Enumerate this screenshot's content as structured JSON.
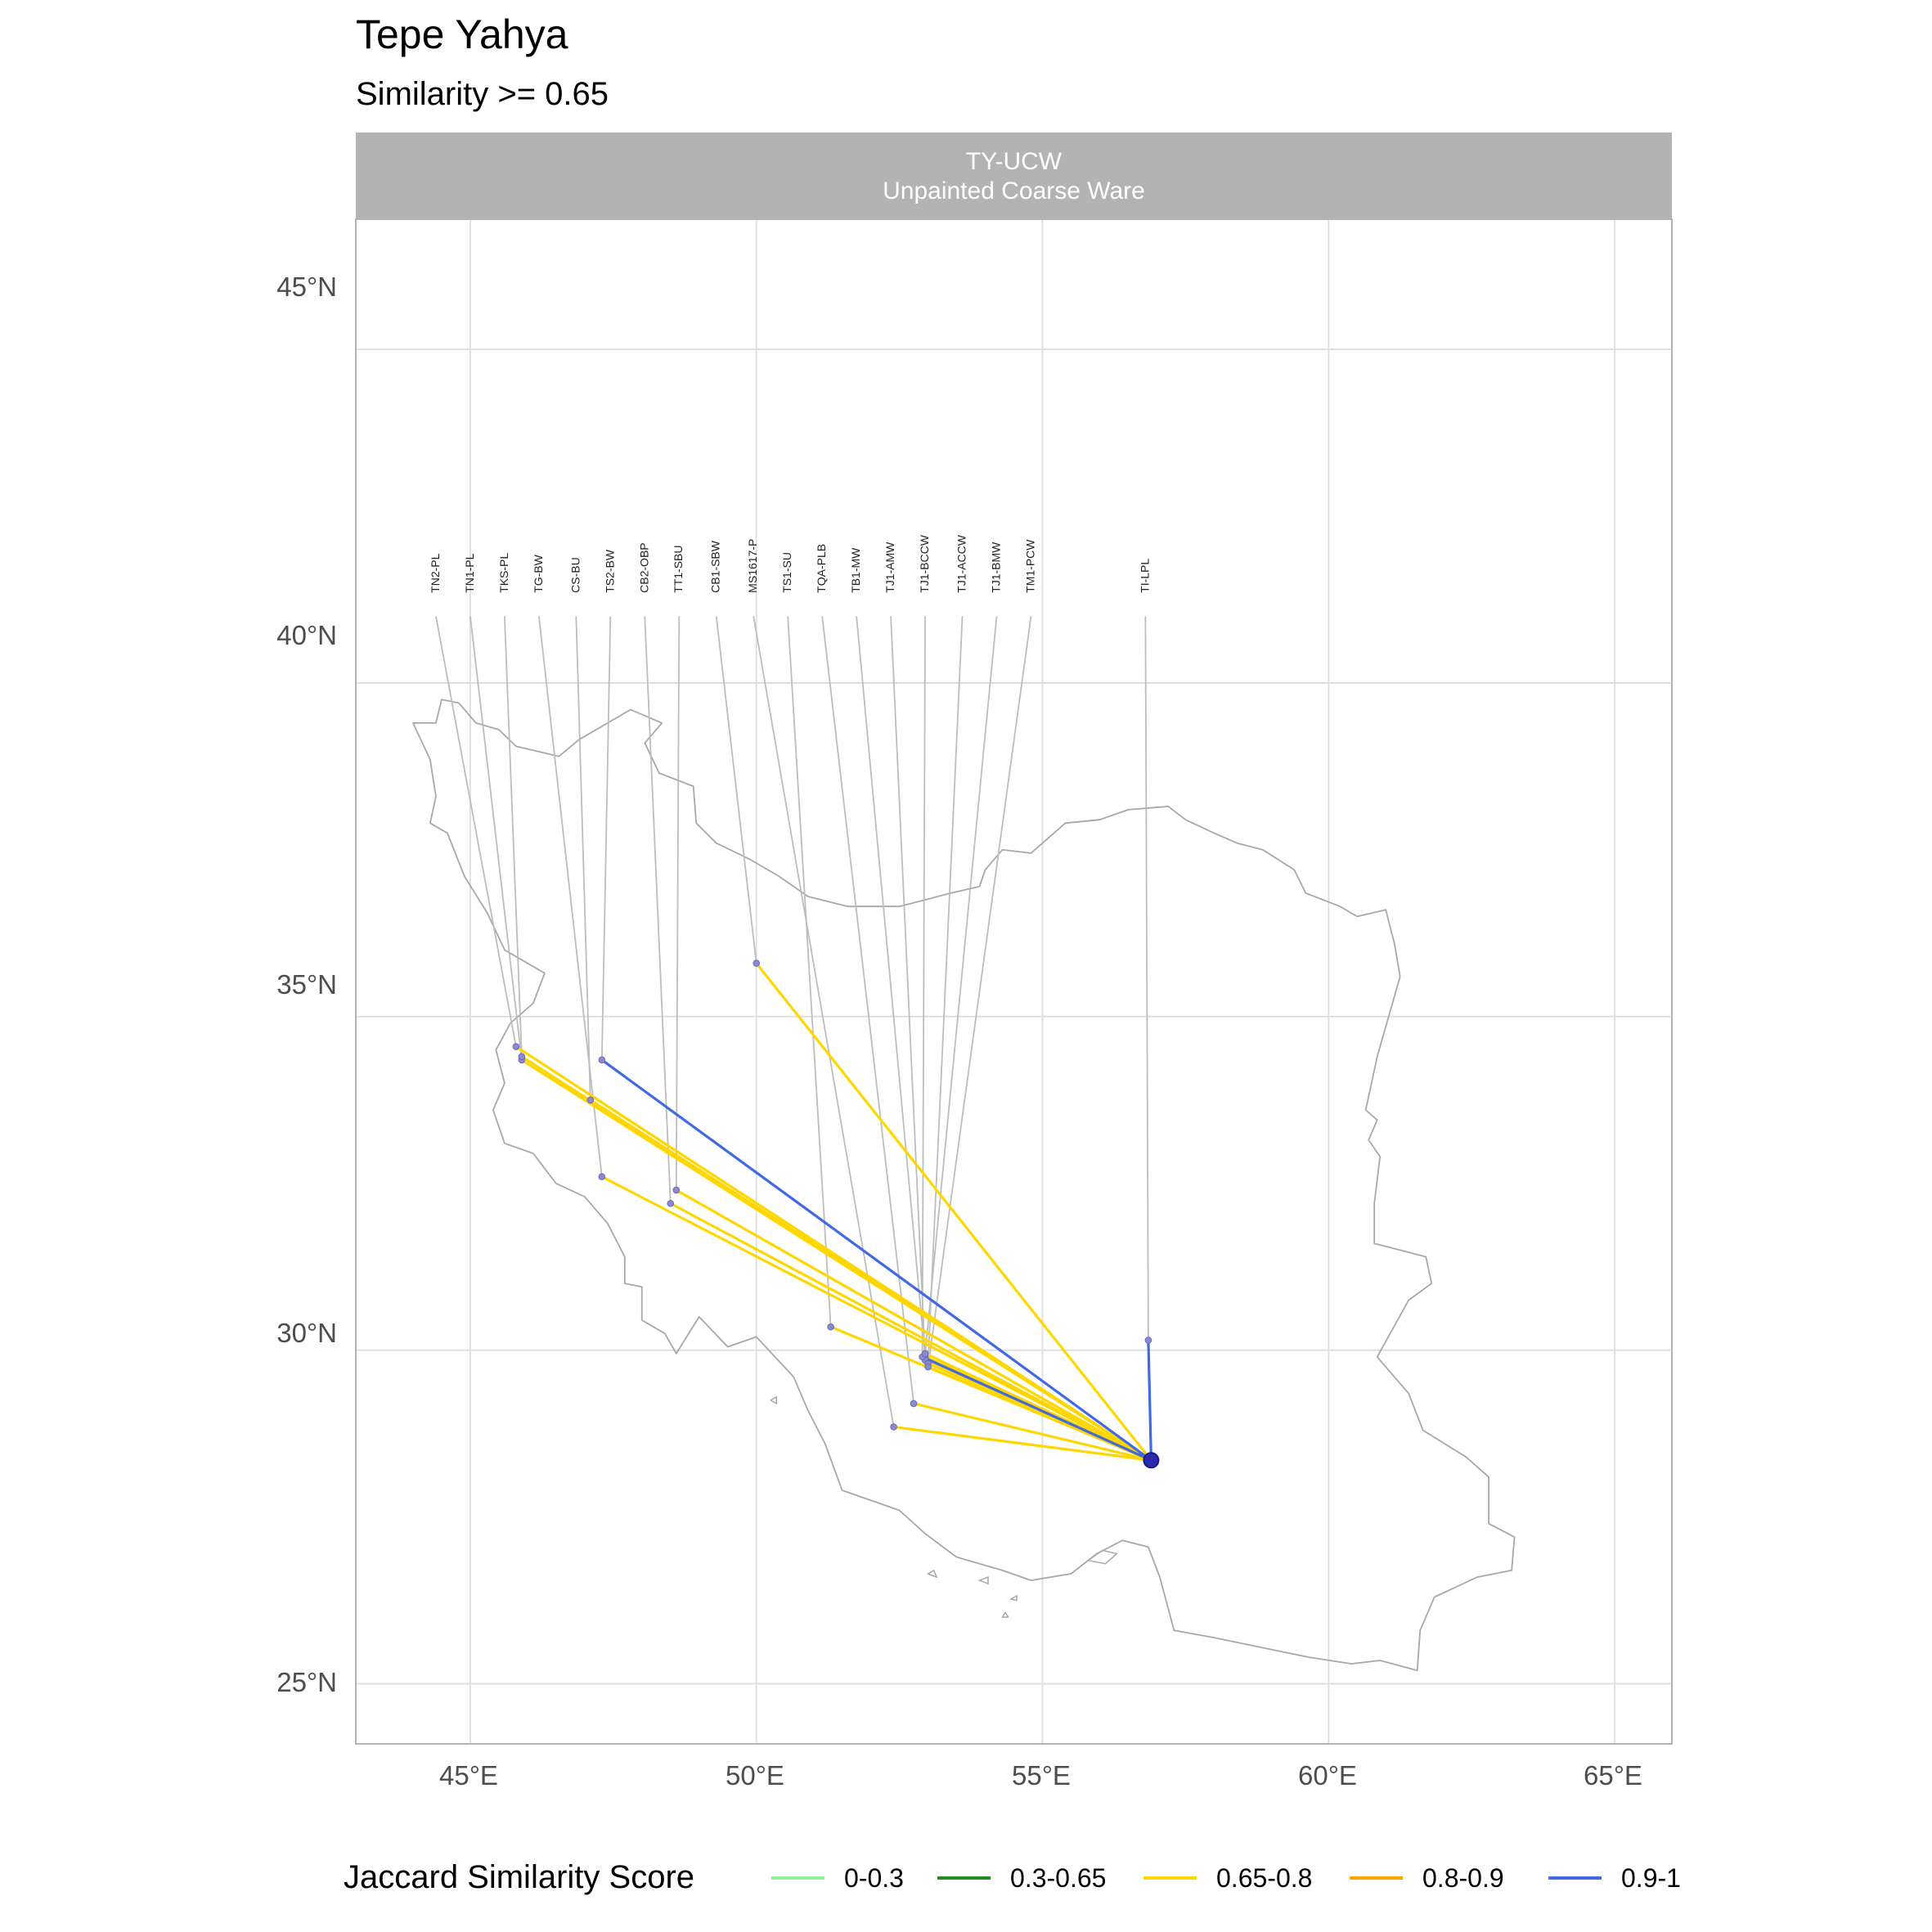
{
  "title": "Tepe Yahya",
  "subtitle": "Similarity >= 0.65",
  "panel": {
    "line1": "TY-UCW",
    "line2": "Unpainted Coarse Ware"
  },
  "axes": {
    "x_ticks": [
      "45°E",
      "50°E",
      "55°E",
      "60°E",
      "65°E"
    ],
    "y_ticks": [
      "45°N",
      "40°N",
      "35°N",
      "30°N",
      "25°N"
    ]
  },
  "legend": {
    "title": "Jaccard Similarity Score",
    "items": [
      {
        "label": "0-0.3",
        "color": "#90EE90"
      },
      {
        "label": "0.3-0.65",
        "color": "#228B22"
      },
      {
        "label": "0.65-0.8",
        "color": "#FFD700"
      },
      {
        "label": "0.8-0.9",
        "color": "#FFA500"
      },
      {
        "label": "0.9-1",
        "color": "#4169E1"
      }
    ]
  },
  "chart_data": {
    "type": "map",
    "xlim": [
      43,
      66
    ],
    "ylim": [
      24.1,
      46.95
    ],
    "x_ticks": [
      45,
      50,
      55,
      60,
      65
    ],
    "y_ticks": [
      45,
      40,
      35,
      30,
      25
    ],
    "grid": true,
    "legend_position": "bottom",
    "origin": {
      "name": "Tepe Yahya",
      "lon": 56.9,
      "lat": 28.35
    },
    "sites": [
      {
        "label": "TN2-PL",
        "lon": 45.8,
        "lat": 34.55,
        "label_lon": 44.4,
        "score": "0.65-0.8"
      },
      {
        "label": "TN1-PL",
        "lon": 45.9,
        "lat": 34.35,
        "label_lon": 45.0,
        "score": "0.65-0.8"
      },
      {
        "label": "TKS-PL",
        "lon": 45.9,
        "lat": 34.4,
        "label_lon": 45.6,
        "score": "0.65-0.8"
      },
      {
        "label": "TG-BW",
        "lon": 47.3,
        "lat": 32.6,
        "label_lon": 46.2,
        "score": "0.65-0.8"
      },
      {
        "label": "CS-BU",
        "lon": 47.1,
        "lat": 33.75,
        "label_lon": 46.85,
        "score": "0.65-0.8"
      },
      {
        "label": "TS2-BW",
        "lon": 47.3,
        "lat": 34.35,
        "label_lon": 47.45,
        "score": "0.9-1"
      },
      {
        "label": "CB2-OBP",
        "lon": 48.5,
        "lat": 32.2,
        "label_lon": 48.05,
        "score": "0.65-0.8"
      },
      {
        "label": "TT1-SBU",
        "lon": 48.6,
        "lat": 32.4,
        "label_lon": 48.65,
        "score": "0.65-0.8"
      },
      {
        "label": "CB1-SBW",
        "lon": 50.0,
        "lat": 35.8,
        "label_lon": 49.3,
        "score": "0.65-0.8"
      },
      {
        "label": "MS1617-P",
        "lon": 52.4,
        "lat": 28.85,
        "label_lon": 49.95,
        "score": "0.65-0.8"
      },
      {
        "label": "TS1-SU",
        "lon": 51.3,
        "lat": 30.35,
        "label_lon": 50.55,
        "score": "0.65-0.8"
      },
      {
        "label": "TQA-PLB",
        "lon": 52.75,
        "lat": 29.2,
        "label_lon": 51.15,
        "score": "0.65-0.8"
      },
      {
        "label": "TB1-MW",
        "lon": 52.95,
        "lat": 29.9,
        "label_lon": 51.75,
        "score": "0.65-0.8"
      },
      {
        "label": "TJ1-AMW",
        "lon": 52.95,
        "lat": 29.85,
        "label_lon": 52.35,
        "score": "0.65-0.8"
      },
      {
        "label": "TJ1-BCCW",
        "lon": 52.9,
        "lat": 29.9,
        "label_lon": 52.95,
        "score": "0.9-1"
      },
      {
        "label": "TJ1-ACCW",
        "lon": 53.0,
        "lat": 29.8,
        "label_lon": 53.6,
        "score": "0.65-0.8"
      },
      {
        "label": "TJ1-BMW",
        "lon": 52.95,
        "lat": 29.95,
        "label_lon": 54.2,
        "score": "0.65-0.8"
      },
      {
        "label": "TM1-PCW",
        "lon": 53.0,
        "lat": 29.75,
        "label_lon": 54.8,
        "score": "0.65-0.8"
      },
      {
        "label": "TI-LPL",
        "lon": 56.85,
        "lat": 30.15,
        "label_lon": 56.8,
        "score": "0.9-1"
      }
    ],
    "iran_outline": [
      [
        44.0,
        39.4
      ],
      [
        44.4,
        39.4
      ],
      [
        44.5,
        39.75
      ],
      [
        44.8,
        39.7
      ],
      [
        45.1,
        39.4
      ],
      [
        45.5,
        39.3
      ],
      [
        45.8,
        39.05
      ],
      [
        46.3,
        38.95
      ],
      [
        46.55,
        38.9
      ],
      [
        46.9,
        39.15
      ],
      [
        47.3,
        39.35
      ],
      [
        47.8,
        39.6
      ],
      [
        48.35,
        39.4
      ],
      [
        48.05,
        39.1
      ],
      [
        48.3,
        38.65
      ],
      [
        48.9,
        38.45
      ],
      [
        48.95,
        37.9
      ],
      [
        49.3,
        37.6
      ],
      [
        49.9,
        37.35
      ],
      [
        50.4,
        37.1
      ],
      [
        50.9,
        36.8
      ],
      [
        51.6,
        36.65
      ],
      [
        52.5,
        36.65
      ],
      [
        53.4,
        36.85
      ],
      [
        53.9,
        36.95
      ],
      [
        54.0,
        37.2
      ],
      [
        54.3,
        37.5
      ],
      [
        54.8,
        37.45
      ],
      [
        55.4,
        37.9
      ],
      [
        56.0,
        37.95
      ],
      [
        56.5,
        38.1
      ],
      [
        57.2,
        38.15
      ],
      [
        57.5,
        37.95
      ],
      [
        58.0,
        37.75
      ],
      [
        58.4,
        37.6
      ],
      [
        58.85,
        37.5
      ],
      [
        59.4,
        37.2
      ],
      [
        59.6,
        36.85
      ],
      [
        60.2,
        36.65
      ],
      [
        60.5,
        36.5
      ],
      [
        61.0,
        36.6
      ],
      [
        61.15,
        36.1
      ],
      [
        61.25,
        35.6
      ],
      [
        61.1,
        35.15
      ],
      [
        60.85,
        34.4
      ],
      [
        60.65,
        33.6
      ],
      [
        60.85,
        33.45
      ],
      [
        60.7,
        33.15
      ],
      [
        60.9,
        32.9
      ],
      [
        60.8,
        32.2
      ],
      [
        60.8,
        31.6
      ],
      [
        61.7,
        31.4
      ],
      [
        61.8,
        31.0
      ],
      [
        61.4,
        30.75
      ],
      [
        60.85,
        29.9
      ],
      [
        61.4,
        29.35
      ],
      [
        61.65,
        28.8
      ],
      [
        62.4,
        28.4
      ],
      [
        62.8,
        28.1
      ],
      [
        62.8,
        27.4
      ],
      [
        63.25,
        27.2
      ],
      [
        63.2,
        26.7
      ],
      [
        62.6,
        26.6
      ],
      [
        61.85,
        26.3
      ],
      [
        61.6,
        25.8
      ],
      [
        61.55,
        25.2
      ],
      [
        60.9,
        25.35
      ],
      [
        60.4,
        25.3
      ],
      [
        59.65,
        25.4
      ],
      [
        58.8,
        25.55
      ],
      [
        57.95,
        25.7
      ],
      [
        57.3,
        25.8
      ],
      [
        57.05,
        26.6
      ],
      [
        56.85,
        27.05
      ],
      [
        56.4,
        27.15
      ],
      [
        55.95,
        26.95
      ],
      [
        55.5,
        26.65
      ],
      [
        54.8,
        26.55
      ],
      [
        54.3,
        26.7
      ],
      [
        53.9,
        26.8
      ],
      [
        53.5,
        26.9
      ],
      [
        52.95,
        27.25
      ],
      [
        52.5,
        27.6
      ],
      [
        51.5,
        27.9
      ],
      [
        51.2,
        28.6
      ],
      [
        50.9,
        29.1
      ],
      [
        50.65,
        29.6
      ],
      [
        50.0,
        30.2
      ],
      [
        49.5,
        30.05
      ],
      [
        49.0,
        30.5
      ],
      [
        48.6,
        29.95
      ],
      [
        48.4,
        30.25
      ],
      [
        48.0,
        30.45
      ],
      [
        48.0,
        30.95
      ],
      [
        47.7,
        31.0
      ],
      [
        47.7,
        31.4
      ],
      [
        47.4,
        31.9
      ],
      [
        47.0,
        32.3
      ],
      [
        46.5,
        32.5
      ],
      [
        46.1,
        32.95
      ],
      [
        45.6,
        33.1
      ],
      [
        45.4,
        33.6
      ],
      [
        45.6,
        34.0
      ],
      [
        45.45,
        34.5
      ],
      [
        45.7,
        34.9
      ],
      [
        46.1,
        35.2
      ],
      [
        46.3,
        35.65
      ],
      [
        45.6,
        36.0
      ],
      [
        45.3,
        36.55
      ],
      [
        44.9,
        37.1
      ],
      [
        44.6,
        37.75
      ],
      [
        44.3,
        37.9
      ],
      [
        44.4,
        38.3
      ],
      [
        44.3,
        38.85
      ],
      [
        44.0,
        39.4
      ]
    ],
    "islands": [
      [
        [
          55.8,
          26.85
        ],
        [
          56.1,
          26.8
        ],
        [
          56.3,
          26.95
        ],
        [
          56.05,
          27.0
        ],
        [
          55.8,
          26.85
        ]
      ],
      [
        [
          53.9,
          26.55
        ],
        [
          54.05,
          26.5
        ],
        [
          54.05,
          26.6
        ],
        [
          53.9,
          26.55
        ]
      ],
      [
        [
          54.45,
          26.27
        ],
        [
          54.55,
          26.25
        ],
        [
          54.55,
          26.32
        ],
        [
          54.45,
          26.27
        ]
      ],
      [
        [
          50.25,
          29.25
        ],
        [
          50.35,
          29.2
        ],
        [
          50.35,
          29.3
        ],
        [
          50.25,
          29.25
        ]
      ],
      [
        [
          54.3,
          26.0
        ],
        [
          54.4,
          26.0
        ],
        [
          54.35,
          26.07
        ],
        [
          54.3,
          26.0
        ]
      ],
      [
        [
          53.0,
          26.65
        ],
        [
          53.15,
          26.6
        ],
        [
          53.1,
          26.7
        ],
        [
          53.0,
          26.65
        ]
      ]
    ],
    "caspian_shore": [
      [
        48.9,
        38.45
      ],
      [
        48.85,
        38.0
      ],
      [
        48.95,
        37.6
      ],
      [
        49.5,
        37.5
      ],
      [
        50.3,
        37.15
      ],
      [
        51.0,
        36.75
      ],
      [
        51.8,
        36.6
      ],
      [
        52.6,
        36.7
      ],
      [
        53.3,
        36.85
      ],
      [
        53.95,
        36.95
      ],
      [
        54.0,
        36.8
      ],
      [
        53.9,
        36.85
      ]
    ]
  }
}
